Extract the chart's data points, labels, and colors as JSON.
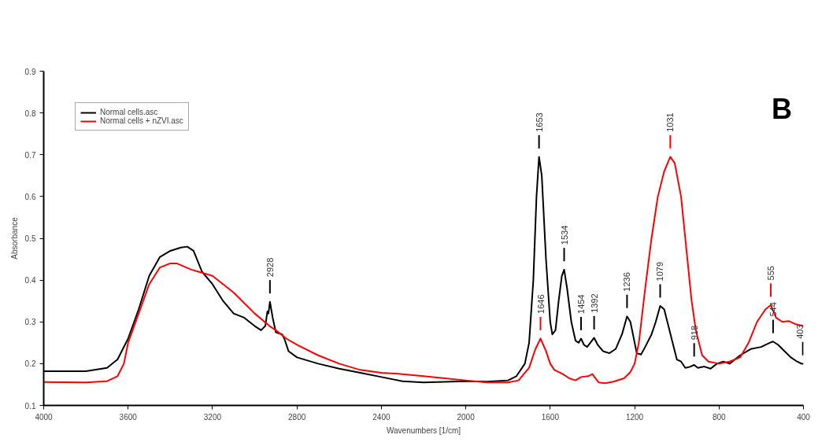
{
  "chart_data": {
    "type": "line",
    "xlabel": "Wavenumbers [1/cm]",
    "ylabel": "Absorbance",
    "xlim": [
      4000,
      400
    ],
    "xticks": [
      4000,
      3600,
      3200,
      2800,
      2400,
      2000,
      1600,
      1200,
      800,
      400
    ],
    "ylim": [
      0.1,
      0.9
    ],
    "yticks": [
      0.1,
      0.2,
      0.3,
      0.4,
      0.5,
      0.6,
      0.7,
      0.8,
      0.9
    ],
    "grid": false,
    "legend": "top left",
    "series": [
      {
        "name": "Normal cells.asc",
        "color": "#000000",
        "x": [
          4000,
          3800,
          3700,
          3650,
          3600,
          3550,
          3500,
          3450,
          3400,
          3350,
          3320,
          3290,
          3250,
          3200,
          3150,
          3100,
          3050,
          3000,
          2970,
          2950,
          2940,
          2935,
          2928,
          2915,
          2900,
          2870,
          2860,
          2840,
          2800,
          2700,
          2600,
          2500,
          2400,
          2300,
          2200,
          2000,
          1900,
          1800,
          1760,
          1720,
          1700,
          1680,
          1665,
          1653,
          1640,
          1620,
          1600,
          1590,
          1575,
          1560,
          1545,
          1534,
          1520,
          1500,
          1480,
          1465,
          1454,
          1440,
          1425,
          1410,
          1392,
          1375,
          1350,
          1320,
          1290,
          1260,
          1236,
          1220,
          1200,
          1190,
          1170,
          1150,
          1120,
          1100,
          1079,
          1060,
          1040,
          1020,
          1000,
          980,
          960,
          940,
          918,
          900,
          870,
          840,
          810,
          780,
          750,
          700,
          650,
          600,
          560,
          544,
          520,
          490,
          460,
          430,
          410,
          400
        ],
        "values": [
          0.182,
          0.182,
          0.19,
          0.21,
          0.26,
          0.33,
          0.41,
          0.455,
          0.47,
          0.478,
          0.48,
          0.47,
          0.42,
          0.39,
          0.35,
          0.32,
          0.31,
          0.29,
          0.28,
          0.29,
          0.325,
          0.32,
          0.348,
          0.31,
          0.275,
          0.27,
          0.26,
          0.23,
          0.215,
          0.2,
          0.188,
          0.178,
          0.168,
          0.158,
          0.155,
          0.158,
          0.157,
          0.16,
          0.17,
          0.2,
          0.25,
          0.4,
          0.6,
          0.695,
          0.65,
          0.45,
          0.3,
          0.27,
          0.28,
          0.35,
          0.41,
          0.425,
          0.38,
          0.3,
          0.255,
          0.25,
          0.26,
          0.245,
          0.24,
          0.25,
          0.262,
          0.245,
          0.23,
          0.225,
          0.235,
          0.27,
          0.313,
          0.3,
          0.25,
          0.225,
          0.222,
          0.24,
          0.27,
          0.3,
          0.338,
          0.33,
          0.29,
          0.25,
          0.21,
          0.205,
          0.19,
          0.192,
          0.197,
          0.19,
          0.193,
          0.188,
          0.2,
          0.205,
          0.2,
          0.22,
          0.235,
          0.24,
          0.25,
          0.253,
          0.245,
          0.23,
          0.215,
          0.205,
          0.2,
          0.2
        ]
      },
      {
        "name": "Normal cells + nZVI.asc",
        "color": "#ff0000",
        "x": [
          4000,
          3800,
          3700,
          3650,
          3620,
          3600,
          3550,
          3500,
          3450,
          3400,
          3370,
          3300,
          3200,
          3100,
          3000,
          2930,
          2900,
          2850,
          2800,
          2700,
          2600,
          2500,
          2400,
          2300,
          2200,
          2100,
          2000,
          1900,
          1800,
          1750,
          1700,
          1670,
          1646,
          1620,
          1600,
          1580,
          1540,
          1510,
          1480,
          1454,
          1420,
          1400,
          1390,
          1370,
          1340,
          1300,
          1250,
          1220,
          1200,
          1180,
          1150,
          1120,
          1090,
          1060,
          1031,
          1010,
          980,
          950,
          930,
          910,
          880,
          850,
          800,
          750,
          700,
          660,
          620,
          580,
          555,
          530,
          500,
          470,
          440,
          400
        ],
        "values": [
          0.156,
          0.155,
          0.158,
          0.17,
          0.2,
          0.25,
          0.32,
          0.39,
          0.43,
          0.44,
          0.44,
          0.425,
          0.41,
          0.37,
          0.32,
          0.29,
          0.28,
          0.26,
          0.245,
          0.22,
          0.2,
          0.185,
          0.178,
          0.175,
          0.17,
          0.165,
          0.16,
          0.155,
          0.155,
          0.16,
          0.19,
          0.235,
          0.26,
          0.23,
          0.2,
          0.185,
          0.175,
          0.165,
          0.16,
          0.168,
          0.17,
          0.175,
          0.168,
          0.155,
          0.153,
          0.157,
          0.165,
          0.18,
          0.2,
          0.25,
          0.38,
          0.5,
          0.6,
          0.66,
          0.695,
          0.68,
          0.6,
          0.45,
          0.35,
          0.28,
          0.22,
          0.205,
          0.2,
          0.205,
          0.215,
          0.25,
          0.3,
          0.33,
          0.34,
          0.31,
          0.3,
          0.302,
          0.295,
          0.29
        ]
      }
    ],
    "annotations": [
      "B",
      {
        "text": "2928",
        "x": 2928,
        "y": 0.348
      },
      {
        "text": "1653",
        "x": 1653,
        "y": 0.695
      },
      {
        "text": "1646",
        "x": 1646,
        "y": 0.26
      },
      {
        "text": "1534",
        "x": 1534,
        "y": 0.425
      },
      {
        "text": "1454",
        "x": 1454,
        "y": 0.26
      },
      {
        "text": "1392",
        "x": 1392,
        "y": 0.262
      },
      {
        "text": "1236",
        "x": 1236,
        "y": 0.313
      },
      {
        "text": "1079",
        "x": 1079,
        "y": 0.338
      },
      {
        "text": "1031",
        "x": 1031,
        "y": 0.695
      },
      {
        "text": "918",
        "x": 918,
        "y": 0.197
      },
      {
        "text": "555",
        "x": 555,
        "y": 0.34
      },
      {
        "text": "544",
        "x": 544,
        "y": 0.253
      },
      {
        "text": "403",
        "x": 403,
        "y": 0.2
      }
    ]
  }
}
